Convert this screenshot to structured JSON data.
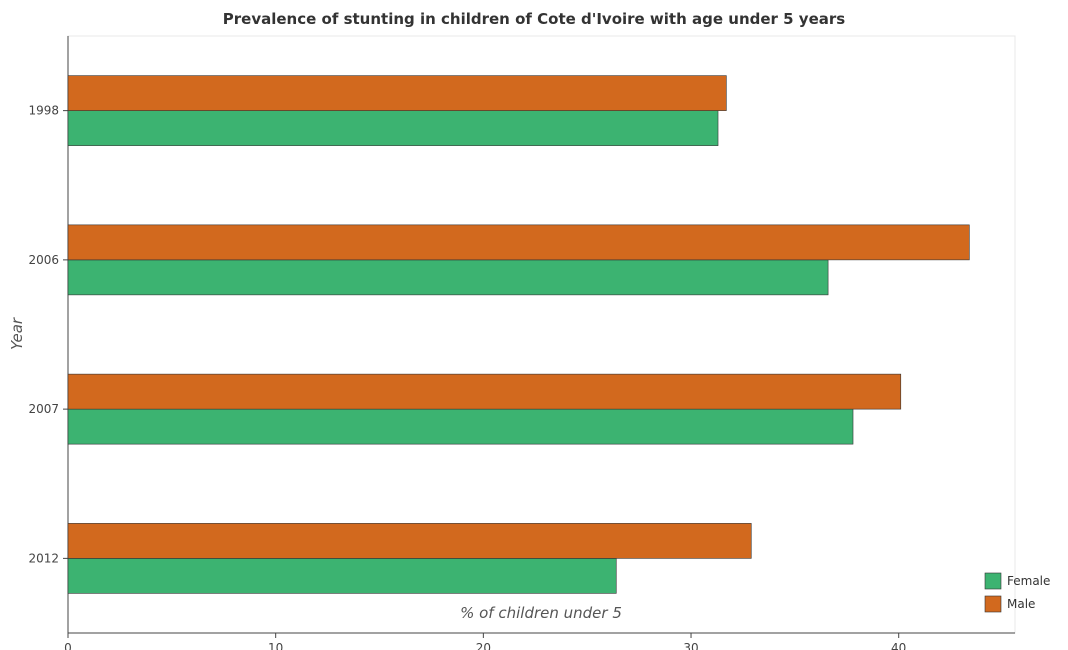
{
  "title": "Prevalence of stunting in children of Cote d'Ivoire with age under 5 years",
  "chart_data": {
    "type": "bar",
    "orientation": "horizontal",
    "title": "Prevalence of stunting in children of Cote d'Ivoire with age under 5 years",
    "xlabel": "% of children under 5",
    "ylabel": "Year",
    "categories": [
      "1998",
      "2006",
      "2007",
      "2012"
    ],
    "series": [
      {
        "name": "Female",
        "color": "#3cb371",
        "values": [
          31.3,
          36.6,
          37.8,
          26.4
        ]
      },
      {
        "name": "Male",
        "color": "#d2691e",
        "values": [
          31.7,
          43.4,
          40.1,
          32.9
        ]
      }
    ],
    "xlim": [
      0,
      45.6
    ],
    "xticks": [
      0,
      10,
      20,
      30,
      40
    ],
    "grid": false,
    "legend": "bottom-right"
  }
}
